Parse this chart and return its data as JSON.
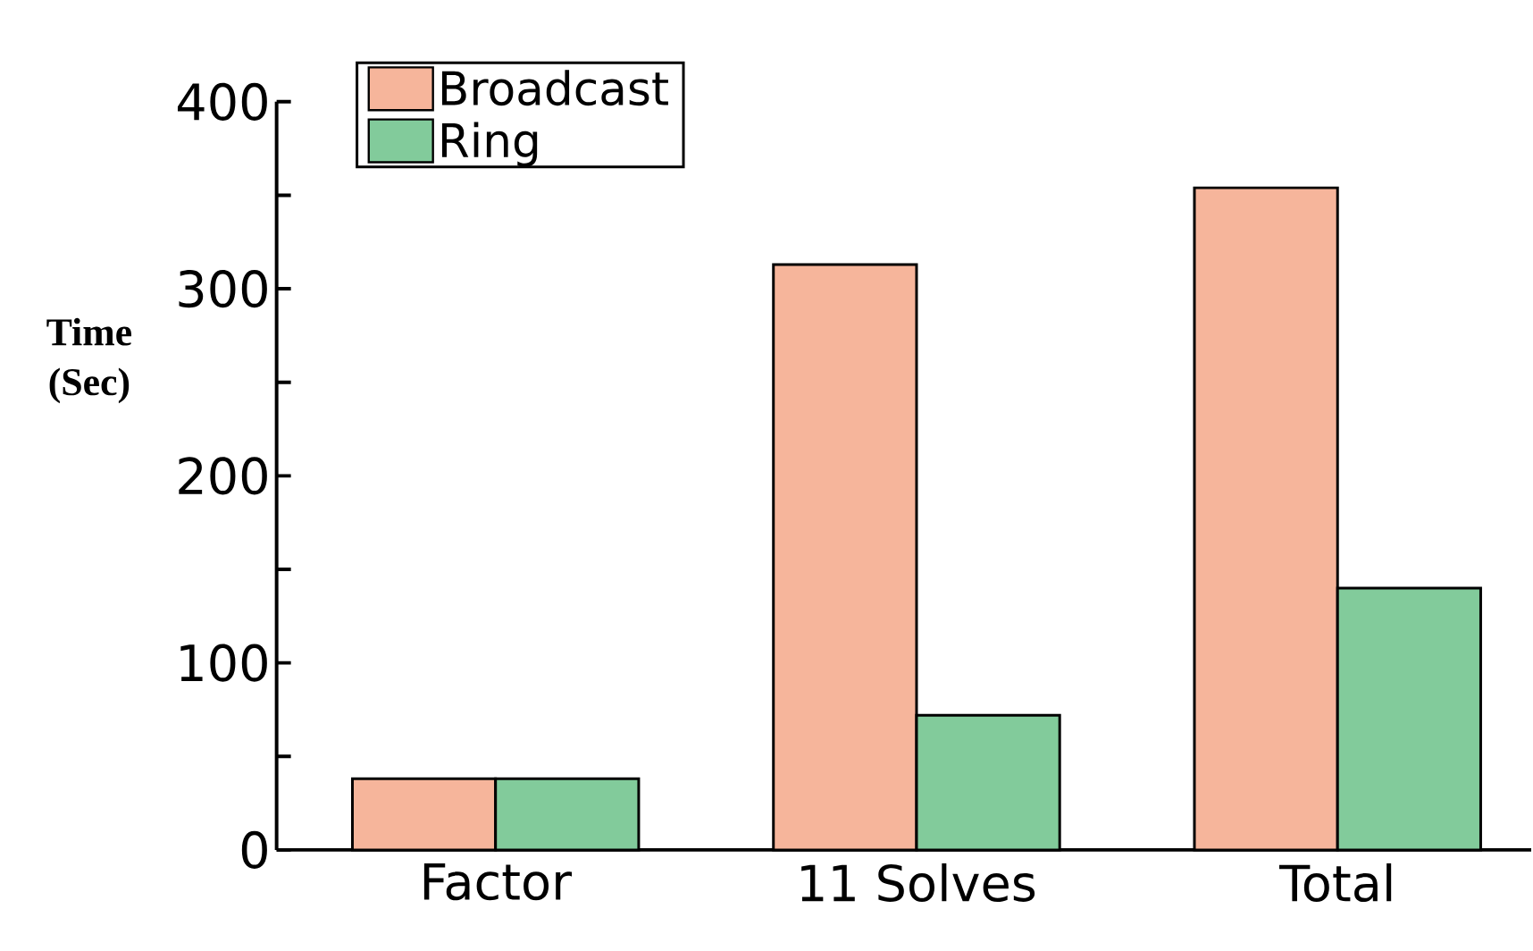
{
  "chart_data": {
    "type": "bar",
    "ylabel": "Time (Sec)",
    "categories": [
      "Factor",
      "11 Solves",
      "Total"
    ],
    "series": [
      {
        "name": "Broadcast",
        "color": "#f6b59b",
        "values": [
          38,
          313,
          354
        ]
      },
      {
        "name": "Ring",
        "color": "#82cb9b",
        "values": [
          38,
          72,
          140
        ]
      }
    ],
    "ylim": [
      0,
      400
    ],
    "yticks": [
      0,
      {
        "value": 50,
        "label": null
      },
      100,
      {
        "value": 150,
        "label": null
      },
      200,
      {
        "value": 250,
        "label": null
      },
      300,
      {
        "value": 350,
        "label": null
      },
      400
    ],
    "grid": false,
    "legend": "top left"
  }
}
